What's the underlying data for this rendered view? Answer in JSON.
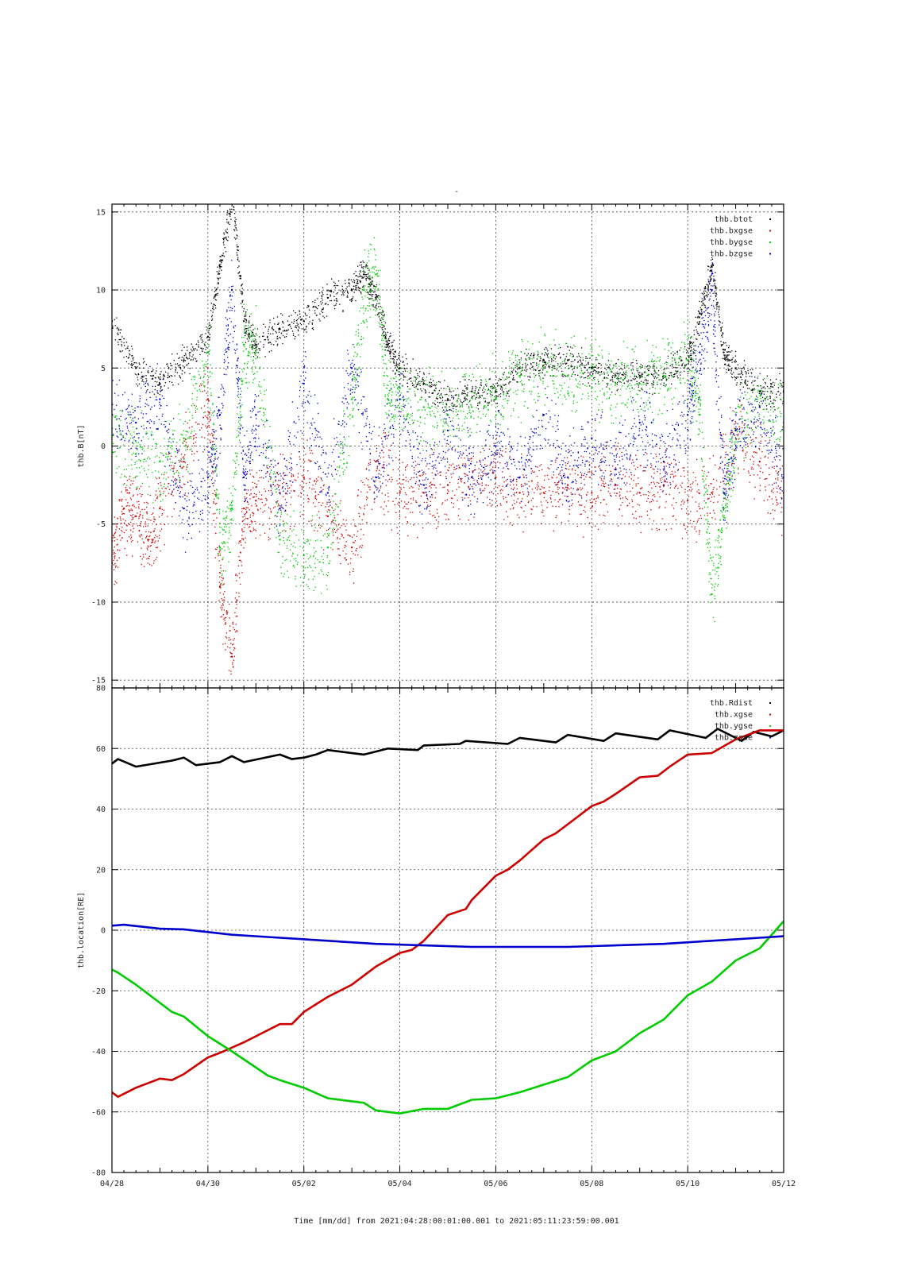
{
  "figure": {
    "top_marker": "-",
    "xaxis_label": "Time [mm/dd]  from 2021:04:28:00:01:00.001  to  2021:05:11:23:59:00.001"
  },
  "chart_data": [
    {
      "type": "scatter",
      "ylabel": "thb.B[nT]",
      "ylim": [
        -15.5,
        15.5
      ],
      "yticks": [
        15,
        10,
        5,
        0,
        -5,
        -10,
        -15
      ],
      "xlim": [
        "04/28",
        "05/12"
      ],
      "xticks": [
        "04/28",
        "04/30",
        "05/02",
        "05/04",
        "05/06",
        "05/08",
        "05/10",
        "05/12"
      ],
      "grid": true,
      "legend_position": "top-right",
      "series": [
        {
          "name": "thb.btot",
          "color": "#000000",
          "x": [
            "04/28",
            "04/28 12:00",
            "04/29",
            "04/29 12:00",
            "04/30",
            "04/30 06:00",
            "04/30 12:00",
            "04/30 18:00",
            "05/01",
            "05/01 12:00",
            "05/02",
            "05/02 12:00",
            "05/03",
            "05/03 06:00",
            "05/03 12:00",
            "05/03 18:00",
            "05/04",
            "05/04 12:00",
            "05/05",
            "05/05 12:00",
            "05/06",
            "05/06 12:00",
            "05/07",
            "05/07 12:00",
            "05/08",
            "05/08 12:00",
            "05/09",
            "05/09 12:00",
            "05/10",
            "05/10 06:00",
            "05/10 12:00",
            "05/10 18:00",
            "05/11",
            "05/11 12:00",
            "05/12"
          ],
          "y": [
            8.0,
            5.0,
            4.0,
            5.5,
            7.0,
            11.5,
            16.0,
            8.0,
            6.5,
            7.5,
            8.0,
            9.5,
            10.0,
            11.0,
            9.5,
            6.5,
            5.0,
            4.0,
            3.0,
            3.5,
            3.5,
            5.0,
            5.5,
            5.5,
            5.0,
            4.5,
            4.5,
            4.5,
            5.5,
            8.5,
            11.5,
            6.0,
            5.0,
            3.5,
            3.5
          ]
        },
        {
          "name": "thb.bxgse",
          "color": "#cc0000",
          "x": [
            "04/28",
            "04/28 06:00",
            "04/28 12:00",
            "04/28 18:00",
            "04/29",
            "04/29 12:00",
            "04/30",
            "04/30 06:00",
            "04/30 12:00",
            "04/30 18:00",
            "05/01",
            "05/01 12:00",
            "05/02",
            "05/02 12:00",
            "05/03",
            "05/03 12:00",
            "05/04",
            "05/04 12:00",
            "05/05",
            "05/05 12:00",
            "05/06",
            "05/06 12:00",
            "05/07",
            "05/07 12:00",
            "05/08",
            "05/08 12:00",
            "05/09",
            "05/09 12:00",
            "05/10",
            "05/10 12:00",
            "05/11",
            "05/11 12:00",
            "05/12"
          ],
          "y": [
            -7.5,
            -4.0,
            -4.5,
            -6.0,
            -4.0,
            -1.0,
            3.0,
            -9.0,
            -13.5,
            -4.0,
            -3.5,
            -3.0,
            -2.0,
            -4.5,
            -6.5,
            -1.0,
            -3.0,
            -3.0,
            -2.5,
            -2.0,
            -2.0,
            -3.0,
            -3.0,
            -2.5,
            -3.0,
            -2.5,
            -3.0,
            -2.5,
            -3.5,
            -3.0,
            1.0,
            -1.0,
            -3.0
          ]
        },
        {
          "name": "thb.bygse",
          "color": "#00cc00",
          "x": [
            "04/28",
            "04/28 12:00",
            "04/29",
            "04/29 12:00",
            "04/30",
            "04/30 06:00",
            "04/30 12:00",
            "04/30 18:00",
            "05/01",
            "05/01 12:00",
            "05/02",
            "05/02 12:00",
            "05/03",
            "05/03 06:00",
            "05/03 12:00",
            "05/03 18:00",
            "05/04",
            "05/04 12:00",
            "05/05",
            "05/05 12:00",
            "05/06",
            "05/06 12:00",
            "05/07",
            "05/07 12:00",
            "05/08",
            "05/08 12:00",
            "05/09",
            "05/09 12:00",
            "05/10",
            "05/10 06:00",
            "05/10 12:00",
            "05/10 18:00",
            "05/11",
            "05/11 12:00",
            "05/12"
          ],
          "y": [
            0.0,
            -0.5,
            -1.0,
            0.5,
            6.0,
            -6.5,
            -4.0,
            6.5,
            6.0,
            -6.0,
            -7.0,
            -6.5,
            3.0,
            10.0,
            11.0,
            3.0,
            3.0,
            2.5,
            2.0,
            2.5,
            3.0,
            4.5,
            5.0,
            4.5,
            4.5,
            4.0,
            4.0,
            4.5,
            5.5,
            2.0,
            -9.5,
            -4.0,
            1.0,
            2.5,
            1.5
          ]
        },
        {
          "name": "thb.bzgse",
          "color": "#0000cc",
          "x": [
            "04/28",
            "04/28 12:00",
            "04/29",
            "04/29 12:00",
            "04/30",
            "04/30 06:00",
            "04/30 12:00",
            "04/30 18:00",
            "05/01",
            "05/01 12:00",
            "05/02",
            "05/02 12:00",
            "05/03",
            "05/03 12:00",
            "05/04",
            "05/04 12:00",
            "05/05",
            "05/05 12:00",
            "05/06",
            "05/06 12:00",
            "05/07",
            "05/07 12:00",
            "05/08",
            "05/08 12:00",
            "05/09",
            "05/09 12:00",
            "05/10",
            "05/10 06:00",
            "05/10 12:00",
            "05/10 18:00",
            "05/11",
            "05/11 12:00",
            "05/12"
          ],
          "y": [
            2.0,
            1.5,
            3.0,
            -4.0,
            -2.0,
            2.0,
            10.0,
            -2.0,
            2.0,
            -4.0,
            4.0,
            -3.0,
            5.0,
            -2.0,
            3.0,
            -2.5,
            1.0,
            -2.0,
            0.0,
            -2.0,
            2.0,
            -2.0,
            0.5,
            -1.5,
            1.5,
            -1.0,
            2.0,
            6.0,
            10.0,
            -3.0,
            1.0,
            2.5,
            -2.0
          ]
        }
      ]
    },
    {
      "type": "line",
      "ylabel": "thb.location[RE]",
      "ylim": [
        -80,
        80
      ],
      "yticks": [
        80,
        60,
        40,
        20,
        0,
        -20,
        -40,
        -60,
        -80
      ],
      "xlim": [
        "04/28",
        "05/12"
      ],
      "xticks": [
        "04/28",
        "04/30",
        "05/02",
        "05/04",
        "05/06",
        "05/08",
        "05/10",
        "05/12"
      ],
      "grid": true,
      "legend_position": "top-right",
      "series": [
        {
          "name": "thb.Rdist",
          "color": "#000000",
          "x": [
            "04/28",
            "04/28 03:00",
            "04/28 12:00",
            "04/29 06:00",
            "04/29 12:00",
            "04/29 18:00",
            "04/30 06:00",
            "04/30 12:00",
            "04/30 18:00",
            "05/01 12:00",
            "05/01 18:00",
            "05/02",
            "05/02 06:00",
            "05/02 12:00",
            "05/03 06:00",
            "05/03 12:00",
            "05/03 18:00",
            "05/04 09:00",
            "05/04 12:00",
            "05/05 06:00",
            "05/05 09:00",
            "05/06 06:00",
            "05/06 12:00",
            "05/07 06:00",
            "05/07 12:00",
            "05/08 06:00",
            "05/08 12:00",
            "05/09 09:00",
            "05/09 15:00",
            "05/10 09:00",
            "05/10 15:00",
            "05/11 03:00",
            "05/11 09:00",
            "05/11 18:00",
            "05/12"
          ],
          "y": [
            55,
            56.5,
            54,
            56,
            57,
            54.5,
            55.5,
            57.5,
            55.5,
            58,
            56.5,
            57,
            58,
            59.5,
            58,
            59,
            60,
            59.5,
            61,
            61.5,
            62.5,
            61.5,
            63.5,
            62,
            64.5,
            62.5,
            65,
            63,
            66,
            63.5,
            66.5,
            62.5,
            65.5,
            64,
            66
          ]
        },
        {
          "name": "thb.xgse",
          "color": "#cc0000",
          "x": [
            "04/28",
            "04/28 03:00",
            "04/28 12:00",
            "04/29",
            "04/29 06:00",
            "04/29 12:00",
            "04/30",
            "04/30 06:00",
            "04/30 18:00",
            "05/01 12:00",
            "05/01 18:00",
            "05/02",
            "05/02 12:00",
            "05/03",
            "05/03 12:00",
            "05/04",
            "05/04 06:00",
            "05/04 12:00",
            "05/05",
            "05/05 09:00",
            "05/05 12:00",
            "05/06",
            "05/06 06:00",
            "05/06 12:00",
            "05/07",
            "05/07 06:00",
            "05/07 12:00",
            "05/08",
            "05/08 06:00",
            "05/08 12:00",
            "05/09",
            "05/09 09:00",
            "05/09 15:00",
            "05/10",
            "05/10 12:00",
            "05/11",
            "05/11 12:00",
            "05/12"
          ],
          "y": [
            -53.5,
            -55,
            -52,
            -49,
            -49.5,
            -47.5,
            -42,
            -40.5,
            -37,
            -31,
            -31,
            -27,
            -22,
            -18,
            -12,
            -7.5,
            -6.5,
            -3.5,
            5,
            7,
            10,
            18,
            20,
            23,
            30,
            32,
            35,
            41,
            42.5,
            45,
            50.5,
            51,
            54,
            58,
            58.5,
            63,
            66,
            66
          ]
        },
        {
          "name": "thb.ygse",
          "color": "#00cc00",
          "x": [
            "04/28",
            "04/28 03:00",
            "04/28 12:00",
            "04/29 06:00",
            "04/29 12:00",
            "04/30",
            "04/30 12:00",
            "05/01 06:00",
            "05/01 12:00",
            "05/02",
            "05/02 12:00",
            "05/03 06:00",
            "05/03 12:00",
            "05/04",
            "05/04 12:00",
            "05/05",
            "05/05 12:00",
            "05/06",
            "05/06 12:00",
            "05/07",
            "05/07 12:00",
            "05/08",
            "05/08 12:00",
            "05/09",
            "05/09 12:00",
            "05/10",
            "05/10 12:00",
            "05/11",
            "05/11 12:00",
            "05/12"
          ],
          "y": [
            -13,
            -14,
            -18,
            -27,
            -28.5,
            -35,
            -40,
            -48,
            -49.5,
            -52,
            -55.5,
            -57,
            -59.5,
            -60.5,
            -59,
            -59,
            -56,
            -55.5,
            -53.5,
            -51,
            -48.5,
            -43,
            -40,
            -34,
            -29.5,
            -21.5,
            -17,
            -10,
            -6,
            3
          ]
        },
        {
          "name": "thb.zgse",
          "color": "#0000cc",
          "x": [
            "04/28",
            "04/28 06:00",
            "04/29",
            "04/29 12:00",
            "04/30 12:00",
            "05/01 12:00",
            "05/02 12:00",
            "05/03 12:00",
            "05/04 12:00",
            "05/05 12:00",
            "05/06 12:00",
            "05/07 12:00",
            "05/08 12:00",
            "05/09 12:00",
            "05/10 12:00",
            "05/11",
            "05/11 12:00",
            "05/12"
          ],
          "y": [
            1.5,
            1.8,
            0.5,
            0.3,
            -1.5,
            -2.5,
            -3.5,
            -4.5,
            -5.0,
            -5.5,
            -5.5,
            -5.5,
            -5.0,
            -4.5,
            -3.5,
            -3.0,
            -2.5,
            -2.0
          ]
        }
      ]
    }
  ]
}
